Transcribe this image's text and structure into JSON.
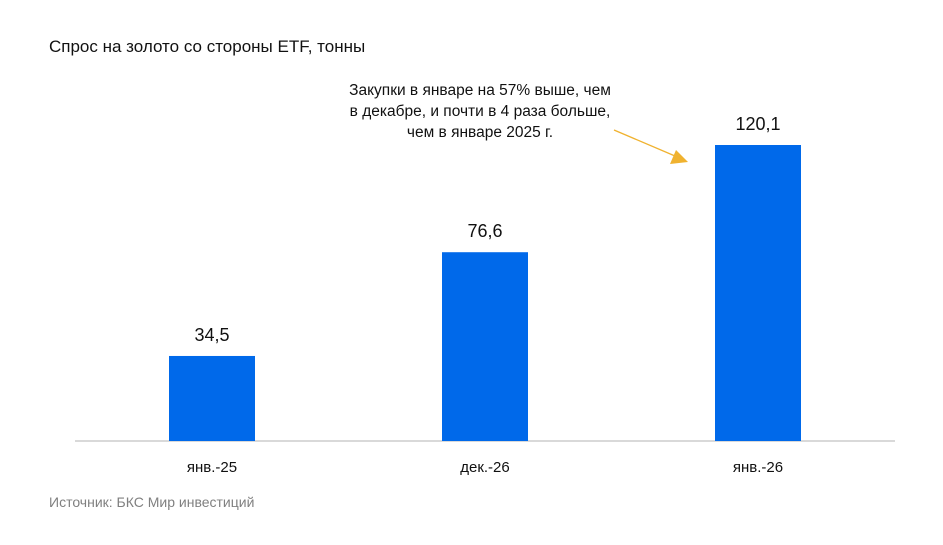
{
  "chart_data": {
    "type": "bar",
    "title": "Спрос на золото со стороны ETF, тонны",
    "categories": [
      "янв.-25",
      "дек.-26",
      "янв.-26"
    ],
    "values": [
      34.5,
      76.6,
      120.1
    ],
    "data_labels": [
      "34,5",
      "76,6",
      "120,1"
    ],
    "ylim": [
      0,
      120.1
    ],
    "grid": false,
    "bar_color": "#0069ea",
    "axis_color": "#d9d9d9",
    "annotation": {
      "text": "Закупки в январе на 57% выше, чем\nв декабре, и почти в 4 раза больше,\nчем в январе 2025 г.",
      "arrow_color": "#f0b22f",
      "points_to": "янв.-26"
    },
    "source": "Источник: БКС Мир инвестиций"
  }
}
